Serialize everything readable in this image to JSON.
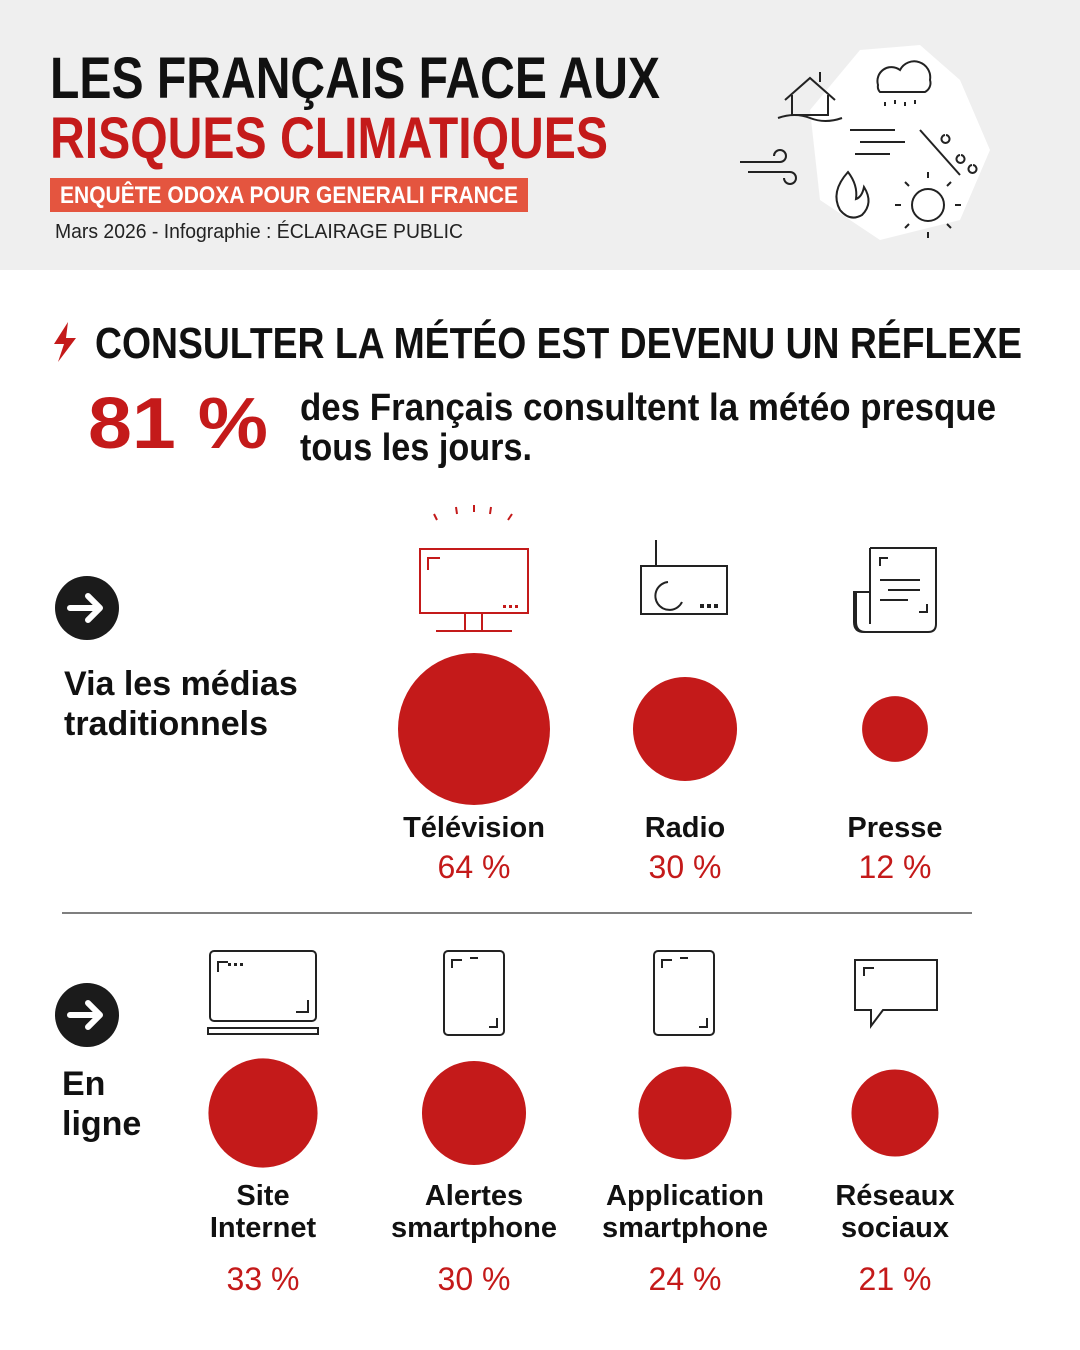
{
  "header": {
    "title_line1": "LES FRANÇAIS FACE AUX",
    "title_line2": "RISQUES CLIMATIQUES",
    "subtitle": "ENQUÊTE ODOXA POUR GENERALI FRANCE",
    "credit": "Mars 2026 - Infographie :  ÉCLAIRAGE PUBLIC"
  },
  "section": {
    "title": "CONSULTER LA MÉTÉO EST DEVENU UN RÉFLEXE",
    "headline_value": "81 %",
    "headline_text": [
      "des Français consultent la météo presque",
      "tous les jours."
    ]
  },
  "groups": [
    {
      "label": [
        "Via les médias",
        "traditionnels"
      ],
      "items": [
        {
          "label": [
            "Télévision"
          ],
          "value": 64,
          "value_label": "64 %"
        },
        {
          "label": [
            "Radio"
          ],
          "value": 30,
          "value_label": "30 %"
        },
        {
          "label": [
            "Presse"
          ],
          "value": 12,
          "value_label": "12 %"
        }
      ]
    },
    {
      "label": [
        "En",
        "ligne"
      ],
      "items": [
        {
          "label": [
            "Site",
            "Internet"
          ],
          "value": 33,
          "value_label": "33 %"
        },
        {
          "label": [
            "Alertes",
            "smartphone"
          ],
          "value": 30,
          "value_label": "30 %"
        },
        {
          "label": [
            "Application",
            "smartphone"
          ],
          "value": 24,
          "value_label": "24 %"
        },
        {
          "label": [
            "Réseaux",
            "sociaux"
          ],
          "value": 21,
          "value_label": "21 %"
        }
      ]
    }
  ],
  "color": "#c41a1a"
}
